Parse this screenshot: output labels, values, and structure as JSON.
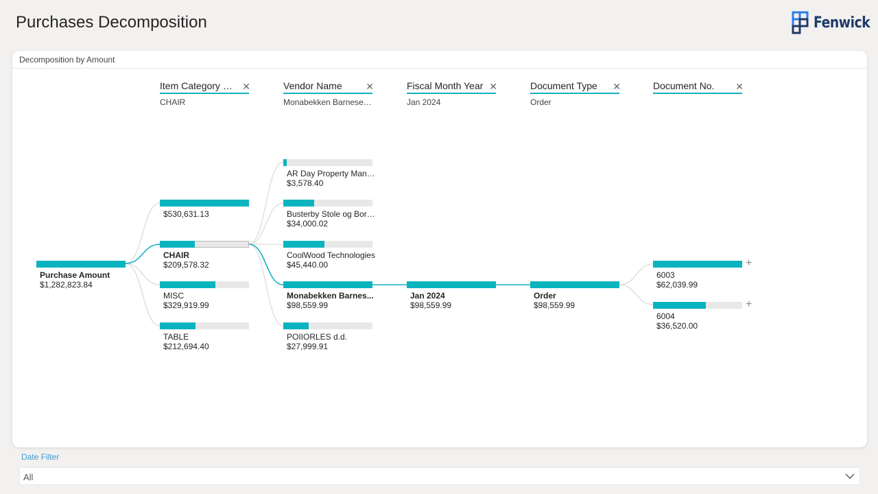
{
  "page": {
    "title": "Purchases Decomposition"
  },
  "brand": {
    "name": "Fenwick",
    "color": "#1f3a68",
    "accent": "#2b7de9"
  },
  "visual": {
    "title": "Decomposition by Amount",
    "bar_color": "#0ab4bf",
    "track_color": "#e8e8e8"
  },
  "levels": [
    {
      "name": "Item Category C...",
      "selected": "CHAIR"
    },
    {
      "name": "Vendor Name",
      "selected": "Monabekken Barnesen..."
    },
    {
      "name": "Fiscal Month Year",
      "selected": "Jan 2024"
    },
    {
      "name": "Document Type",
      "selected": "Order"
    },
    {
      "name": "Document No.",
      "selected": ""
    }
  ],
  "root": {
    "label": "Purchase Amount",
    "value": "$1,282,823.84"
  },
  "categories": [
    {
      "label": "",
      "value": "$530,631.13",
      "fraction": 1.0
    },
    {
      "label": "CHAIR",
      "value": "$209,578.32",
      "fraction": 0.395,
      "selected": true
    },
    {
      "label": "MISC",
      "value": "$329,919.99",
      "fraction": 0.622
    },
    {
      "label": "TABLE",
      "value": "$212,694.40",
      "fraction": 0.401
    }
  ],
  "vendors": [
    {
      "label": "AR Day Property Mana...",
      "value": "$3,578.40",
      "fraction": 0.036
    },
    {
      "label": "Busterby Stole og Bord...",
      "value": "$34,000.02",
      "fraction": 0.345
    },
    {
      "label": "CoolWood Technologies",
      "value": "$45,440.00",
      "fraction": 0.461
    },
    {
      "label": "Monabekken Barnes...",
      "value": "$98,559.99",
      "fraction": 1.0,
      "selected": true
    },
    {
      "label": "POIIORLES d.d.",
      "value": "$27,999.91",
      "fraction": 0.284
    }
  ],
  "months": [
    {
      "label": "Jan 2024",
      "value": "$98,559.99",
      "fraction": 1.0,
      "selected": true
    }
  ],
  "doc_types": [
    {
      "label": "Order",
      "value": "$98,559.99",
      "fraction": 1.0,
      "selected": true
    }
  ],
  "documents": [
    {
      "label": "6003",
      "value": "$62,039.99",
      "fraction": 1.0
    },
    {
      "label": "6004",
      "value": "$36,520.00",
      "fraction": 0.589
    }
  ],
  "filter": {
    "label": "Date Filter",
    "value": "All"
  }
}
